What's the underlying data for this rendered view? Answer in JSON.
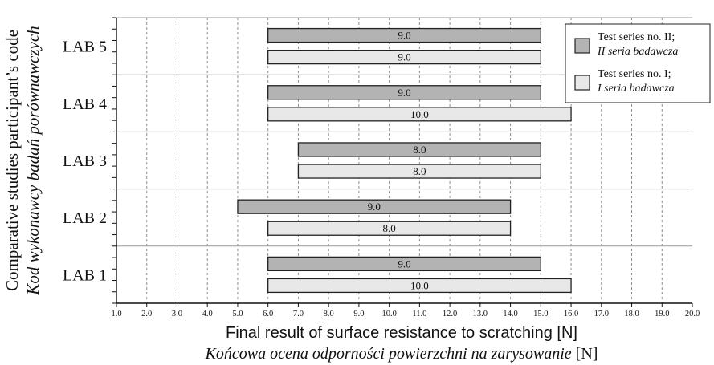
{
  "chart_data": {
    "type": "bar",
    "orientation": "horizontal-range",
    "categories": [
      "LAB 5",
      "LAB 4",
      "LAB 3",
      "LAB 2",
      "LAB 1"
    ],
    "series": [
      {
        "name": "Test series no. II;",
        "name_pl": "II seria badawcza",
        "color": "#b3b3b3",
        "ranges": [
          [
            6.0,
            15.0
          ],
          [
            6.0,
            15.0
          ],
          [
            7.0,
            15.0
          ],
          [
            5.0,
            14.0
          ],
          [
            6.0,
            15.0
          ]
        ],
        "labels": [
          "9.0",
          "9.0",
          "8.0",
          "9.0",
          "9.0"
        ]
      },
      {
        "name": "Test series no. I;",
        "name_pl": "I seria badawcza",
        "color": "#e8e8e8",
        "ranges": [
          [
            6.0,
            15.0
          ],
          [
            6.0,
            16.0
          ],
          [
            7.0,
            15.0
          ],
          [
            6.0,
            14.0
          ],
          [
            6.0,
            16.0
          ]
        ],
        "labels": [
          "9.0",
          "10.0",
          "8.0",
          "8.0",
          "10.0"
        ]
      }
    ],
    "xlim": [
      1.0,
      20.0
    ],
    "xticks": [
      "1.0",
      "2.0",
      "3.0",
      "4.0",
      "5.0",
      "6.0",
      "7.0",
      "8.0",
      "9.0",
      "10.0",
      "11.0",
      "12.0",
      "13.0",
      "14.0",
      "15.0",
      "16.0",
      "17.0",
      "18.0",
      "19.0",
      "20.0"
    ],
    "xlabel": "Final result of surface resistance to scratching [N]",
    "xlabel_pl": "Końcowa ocena odporności powierzchni na zarysowanie",
    "xlabel_pl_unit": "[N]",
    "ylabel": "Comparative studies participant’s code",
    "ylabel_pl": "Kod wykonawcy badań porównawczych",
    "grid": "vertical-dashed",
    "legend": "top-right"
  }
}
